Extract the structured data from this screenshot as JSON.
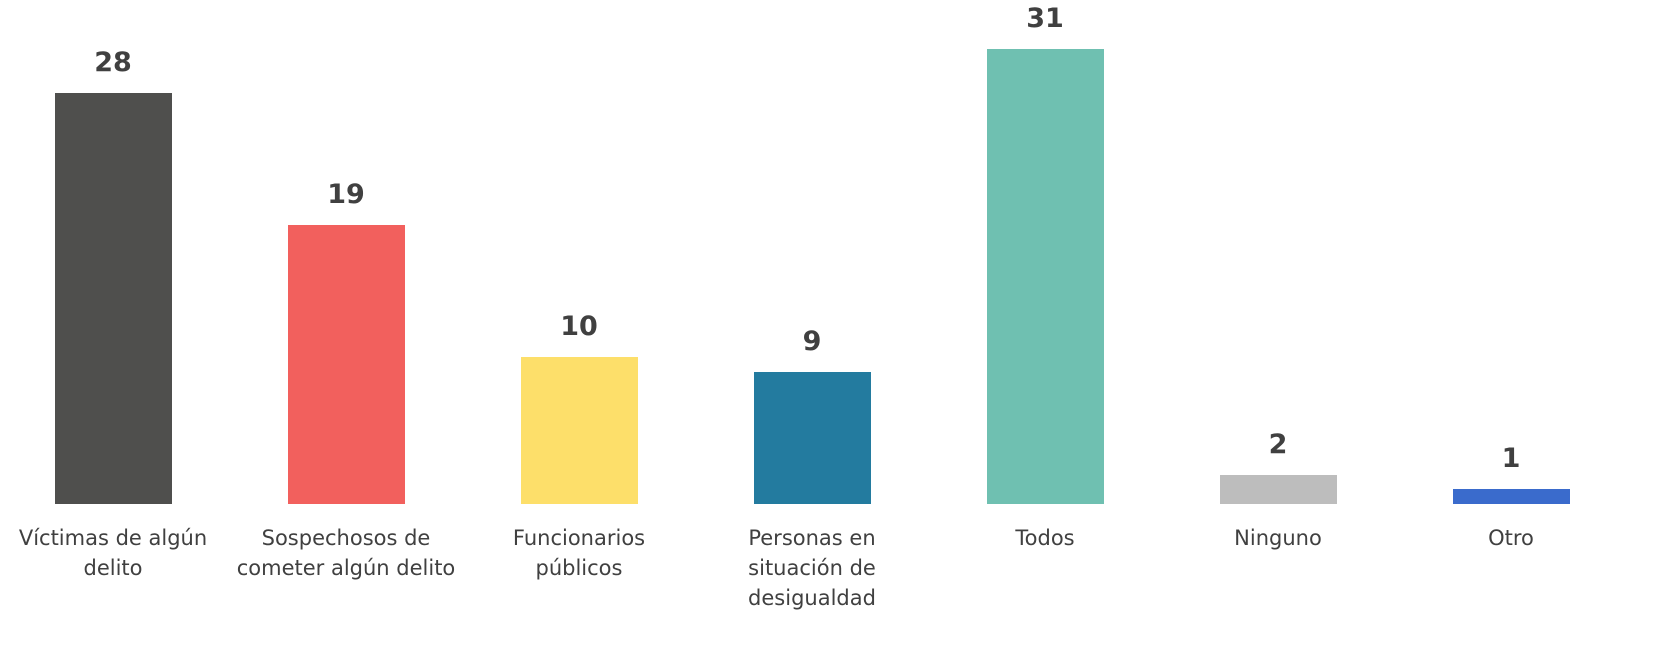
{
  "chart_data": {
    "type": "bar",
    "categories": [
      "Víctimas de algún\ndelito",
      "Sospechosos de\ncometer algún delito",
      "Funcionarios\npúblicos",
      "Personas en\nsituación de\ndesigualdad",
      "Todos",
      "Ninguno",
      "Otro"
    ],
    "values": [
      28,
      19,
      10,
      9,
      31,
      2,
      1
    ],
    "colors": [
      "#4f4f4d",
      "#f2605d",
      "#fddf6a",
      "#237b9f",
      "#6fc0b1",
      "#bdbdbd",
      "#3a6bcc"
    ]
  }
}
